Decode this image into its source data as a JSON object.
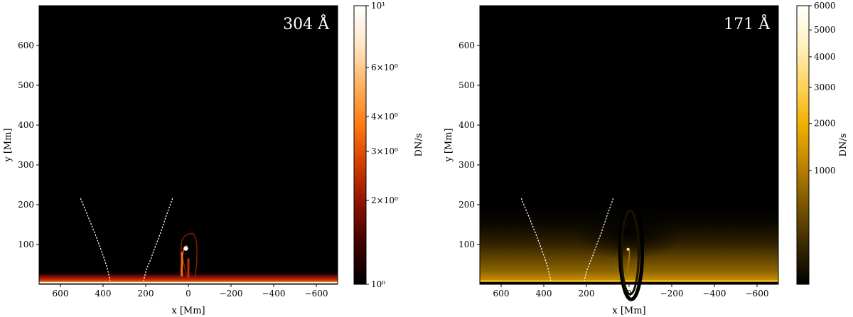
{
  "chart_data": [
    {
      "type": "heatmap",
      "title": "304 Å",
      "xlabel": "x [Mm]",
      "ylabel": "y [Mm]",
      "xlim": [
        700,
        -700
      ],
      "ylim": [
        0,
        700
      ],
      "xticks": [
        600,
        400,
        200,
        0,
        -200,
        -400,
        -600
      ],
      "xtick_labels": [
        "600",
        "400",
        "200",
        "0",
        "−200",
        "−400",
        "−600"
      ],
      "yticks": [
        100,
        200,
        300,
        400,
        500,
        600
      ],
      "ytick_labels": [
        "100",
        "200",
        "300",
        "400",
        "500",
        "600"
      ],
      "colorbar": {
        "label": "DN/s",
        "scale": "log",
        "range": [
          1,
          10
        ],
        "ticks": [
          1,
          2,
          3,
          4,
          6,
          10
        ],
        "tick_labels": [
          "10⁰",
          "2×10⁰",
          "3×10⁰",
          "4×10⁰",
          "6×10⁰",
          "10¹"
        ],
        "colors": [
          "#000000",
          "#3d0000",
          "#8a1200",
          "#d23c00",
          "#ff7a10",
          "#ffb060",
          "#ffe8c8",
          "#ffffff"
        ]
      },
      "dotted_curves": [
        {
          "x": [
            505,
            470,
            440,
            415,
            395,
            380,
            372,
            368
          ],
          "y": [
            215,
            170,
            130,
            95,
            65,
            40,
            20,
            10
          ]
        },
        {
          "x": [
            75,
            105,
            130,
            155,
            175,
            195,
            205,
            210
          ],
          "y": [
            215,
            170,
            130,
            95,
            65,
            40,
            20,
            10
          ]
        }
      ]
    },
    {
      "type": "heatmap",
      "title": "171 Å",
      "xlabel": "x [Mm]",
      "ylabel": "y [Mm]",
      "xlim": [
        700,
        -700
      ],
      "ylim": [
        0,
        700
      ],
      "xticks": [
        600,
        400,
        200,
        0,
        -200,
        -400,
        -600
      ],
      "xtick_labels": [
        "600",
        "400",
        "200",
        "0",
        "−200",
        "−400",
        "−600"
      ],
      "yticks": [
        100,
        200,
        300,
        400,
        500,
        600
      ],
      "ytick_labels": [
        "100",
        "200",
        "300",
        "400",
        "500",
        "600"
      ],
      "colorbar": {
        "label": "DN/s",
        "scale": "sqrt",
        "range": [
          0,
          6000
        ],
        "ticks": [
          1000,
          2000,
          3000,
          4000,
          5000,
          6000
        ],
        "tick_labels": [
          "1000",
          "2000",
          "3000",
          "4000",
          "5000",
          "6000"
        ],
        "colors": [
          "#000000",
          "#3b2a00",
          "#7a5600",
          "#c08400",
          "#f0b000",
          "#ffd35a",
          "#fff2c0",
          "#ffffff"
        ]
      },
      "dotted_curves": [
        {
          "x": [
            505,
            470,
            440,
            415,
            395,
            380,
            372,
            368
          ],
          "y": [
            215,
            170,
            130,
            95,
            65,
            40,
            20,
            10
          ]
        },
        {
          "x": [
            75,
            105,
            130,
            155,
            175,
            195,
            205,
            210
          ],
          "y": [
            215,
            170,
            130,
            95,
            65,
            40,
            20,
            10
          ]
        }
      ]
    }
  ]
}
